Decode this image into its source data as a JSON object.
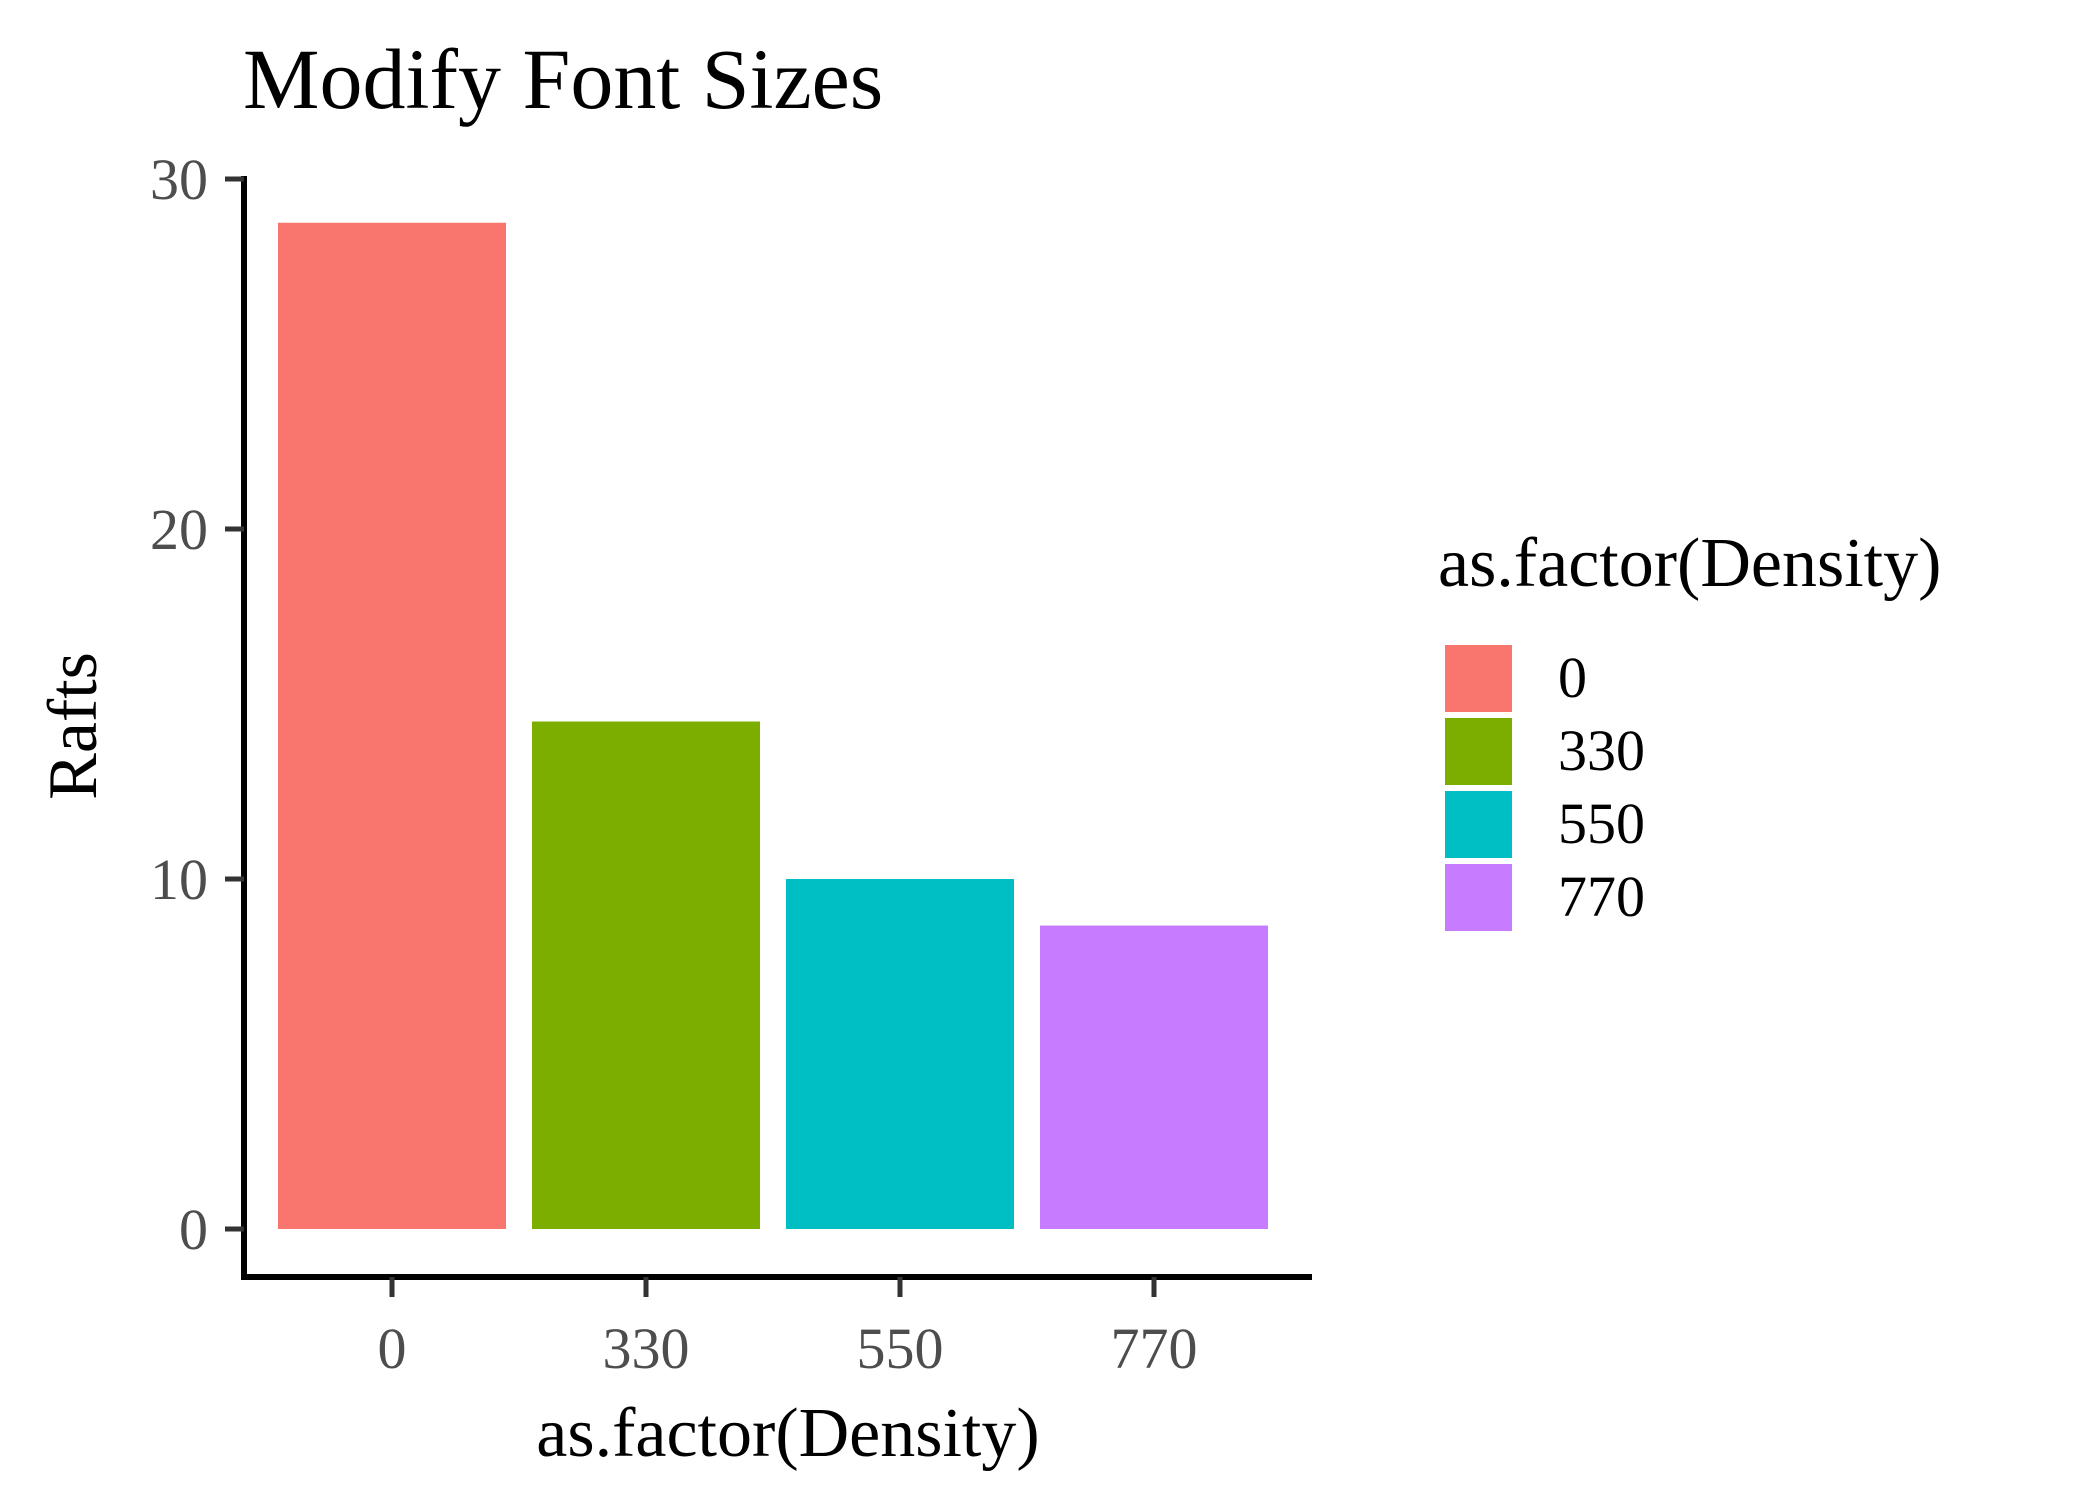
{
  "chart_data": {
    "type": "bar",
    "title": "Modify Font Sizes",
    "xlabel": "as.factor(Density)",
    "ylabel": "Rafts",
    "categories": [
      "0",
      "330",
      "550",
      "770"
    ],
    "values": [
      28.75,
      14.5,
      10.0,
      8.67
    ],
    "colors": [
      "#F8766D",
      "#7CAE00",
      "#00BFC4",
      "#C77CFF"
    ],
    "ylim": [
      0,
      30
    ],
    "y_ticks": [
      0,
      10,
      20,
      30
    ],
    "y_tick_labels": [
      "0",
      "10",
      "20",
      "30"
    ],
    "grid": false,
    "legend": {
      "title": "as.factor(Density)",
      "position": "right",
      "entries": [
        "0",
        "330",
        "550",
        "770"
      ]
    }
  }
}
